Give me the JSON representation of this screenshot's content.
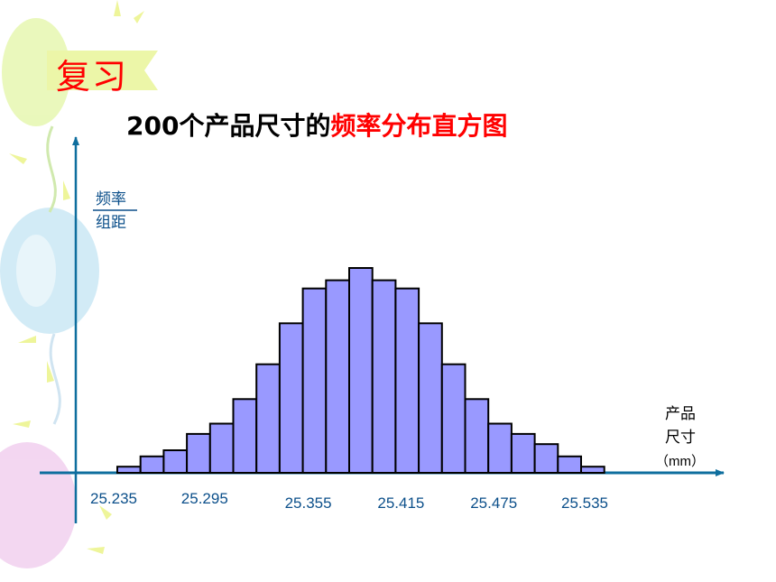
{
  "slide": {
    "section_label": "复习",
    "title_prefix": "200个产品尺寸的",
    "title_highlight": "频率分布直方图"
  },
  "colors": {
    "accent_red": "#ff0000",
    "axis": "#0e6e9e",
    "bar_fill": "#9999ff",
    "bar_stroke": "#000000",
    "label_blue": "#0b4f8a"
  },
  "chart_data": {
    "type": "bar",
    "title": "200个产品尺寸的频率分布直方图",
    "ylabel_numerator": "频率",
    "ylabel_denominator": "组距",
    "xlabel_lines": [
      "产品",
      "尺寸",
      "（mm）"
    ],
    "x_tick_labels": [
      "25.235",
      "25.295",
      "25.355",
      "25.415",
      "25.475",
      "25.535"
    ],
    "grid": false,
    "bin_count": 21,
    "relative_heights": [
      0.03,
      0.08,
      0.11,
      0.19,
      0.24,
      0.36,
      0.53,
      0.73,
      0.9,
      0.94,
      1.0,
      0.94,
      0.9,
      0.73,
      0.53,
      0.36,
      0.24,
      0.19,
      0.14,
      0.08,
      0.03
    ]
  }
}
